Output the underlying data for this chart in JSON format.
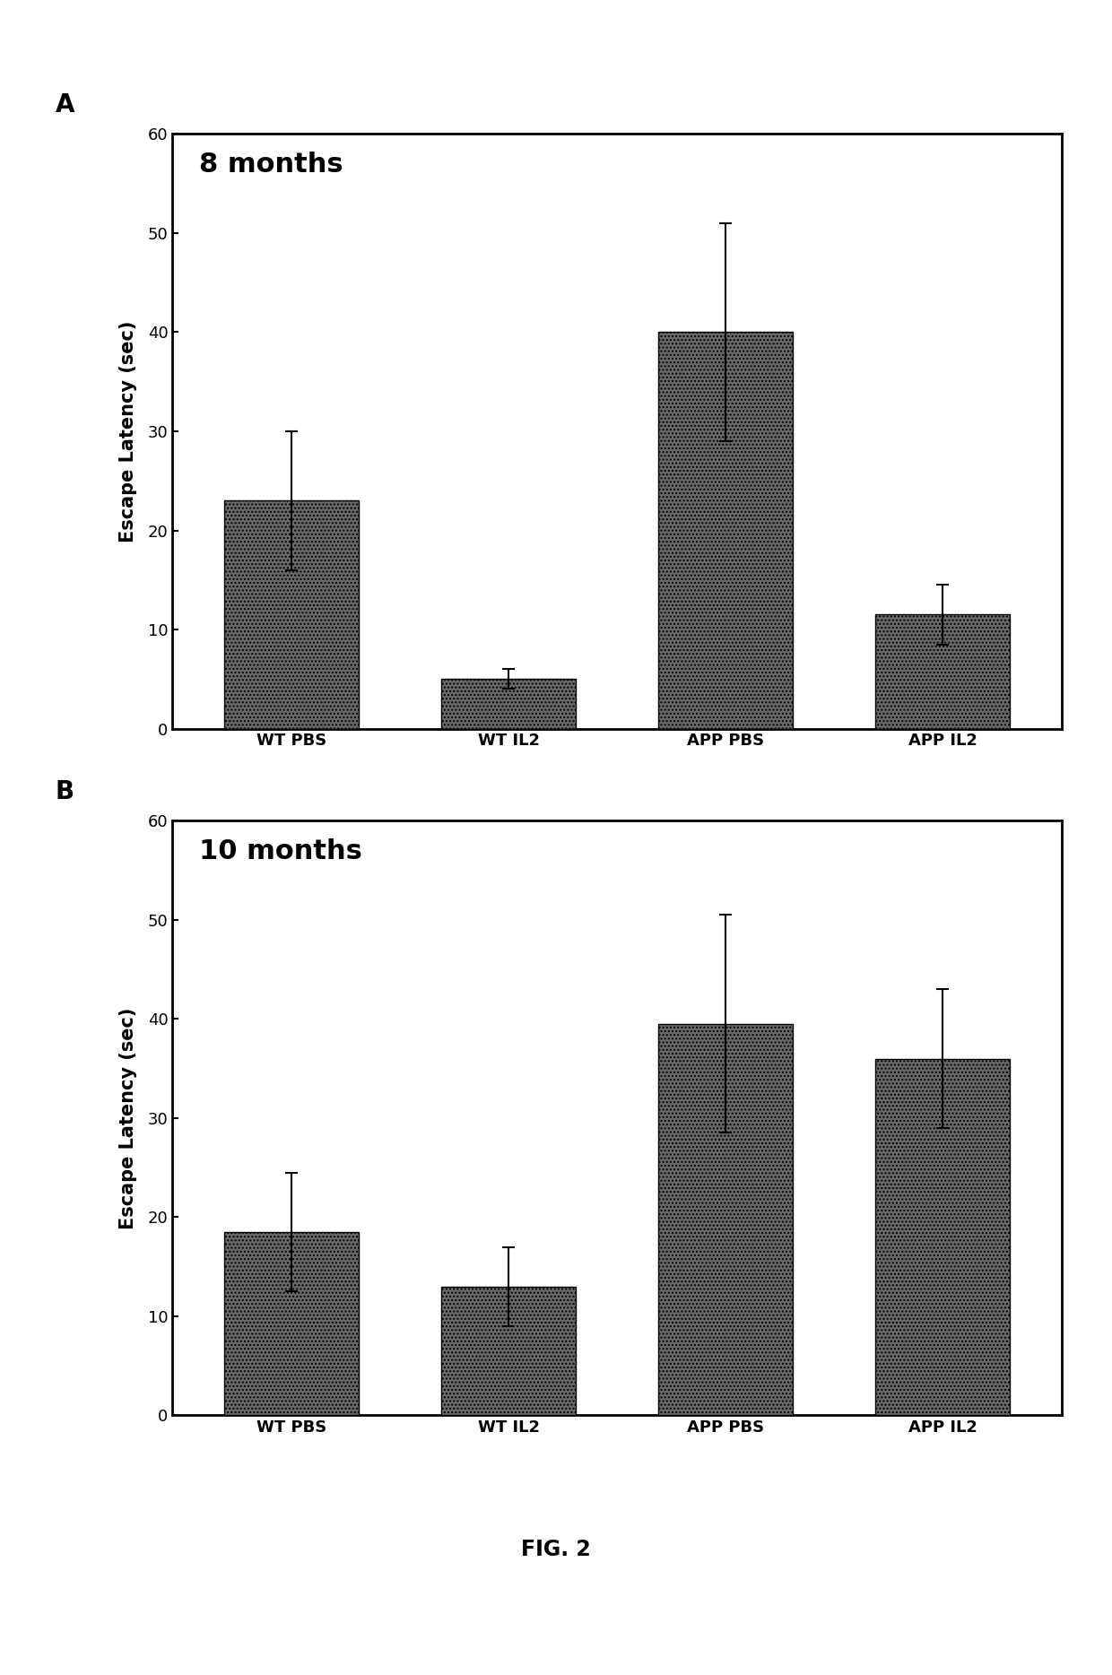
{
  "panel_A": {
    "title": "8 months",
    "categories": [
      "WT PBS",
      "WT IL2",
      "APP PBS",
      "APP IL2"
    ],
    "values": [
      23.0,
      5.0,
      40.0,
      11.5
    ],
    "errors": [
      7.0,
      1.0,
      11.0,
      3.0
    ],
    "ylabel": "Escape Latency (sec)",
    "ylim": [
      0,
      60
    ],
    "yticks": [
      0,
      10,
      20,
      30,
      40,
      50,
      60
    ]
  },
  "panel_B": {
    "title": "10 months",
    "categories": [
      "WT PBS",
      "WT IL2",
      "APP PBS",
      "APP IL2"
    ],
    "values": [
      18.5,
      13.0,
      39.5,
      36.0
    ],
    "errors": [
      6.0,
      4.0,
      11.0,
      7.0
    ],
    "ylabel": "Escape Latency (sec)",
    "ylim": [
      0,
      60
    ],
    "yticks": [
      0,
      10,
      20,
      30,
      40,
      50,
      60
    ]
  },
  "bar_color": "#696969",
  "bar_hatch": "....",
  "bar_width": 0.62,
  "label_A": "A",
  "label_B": "B",
  "fig_label": "FIG. 2",
  "background_color": "#ffffff",
  "title_fontsize": 22,
  "axis_label_fontsize": 15,
  "tick_fontsize": 13,
  "panel_label_fontsize": 20,
  "fig_label_fontsize": 17
}
